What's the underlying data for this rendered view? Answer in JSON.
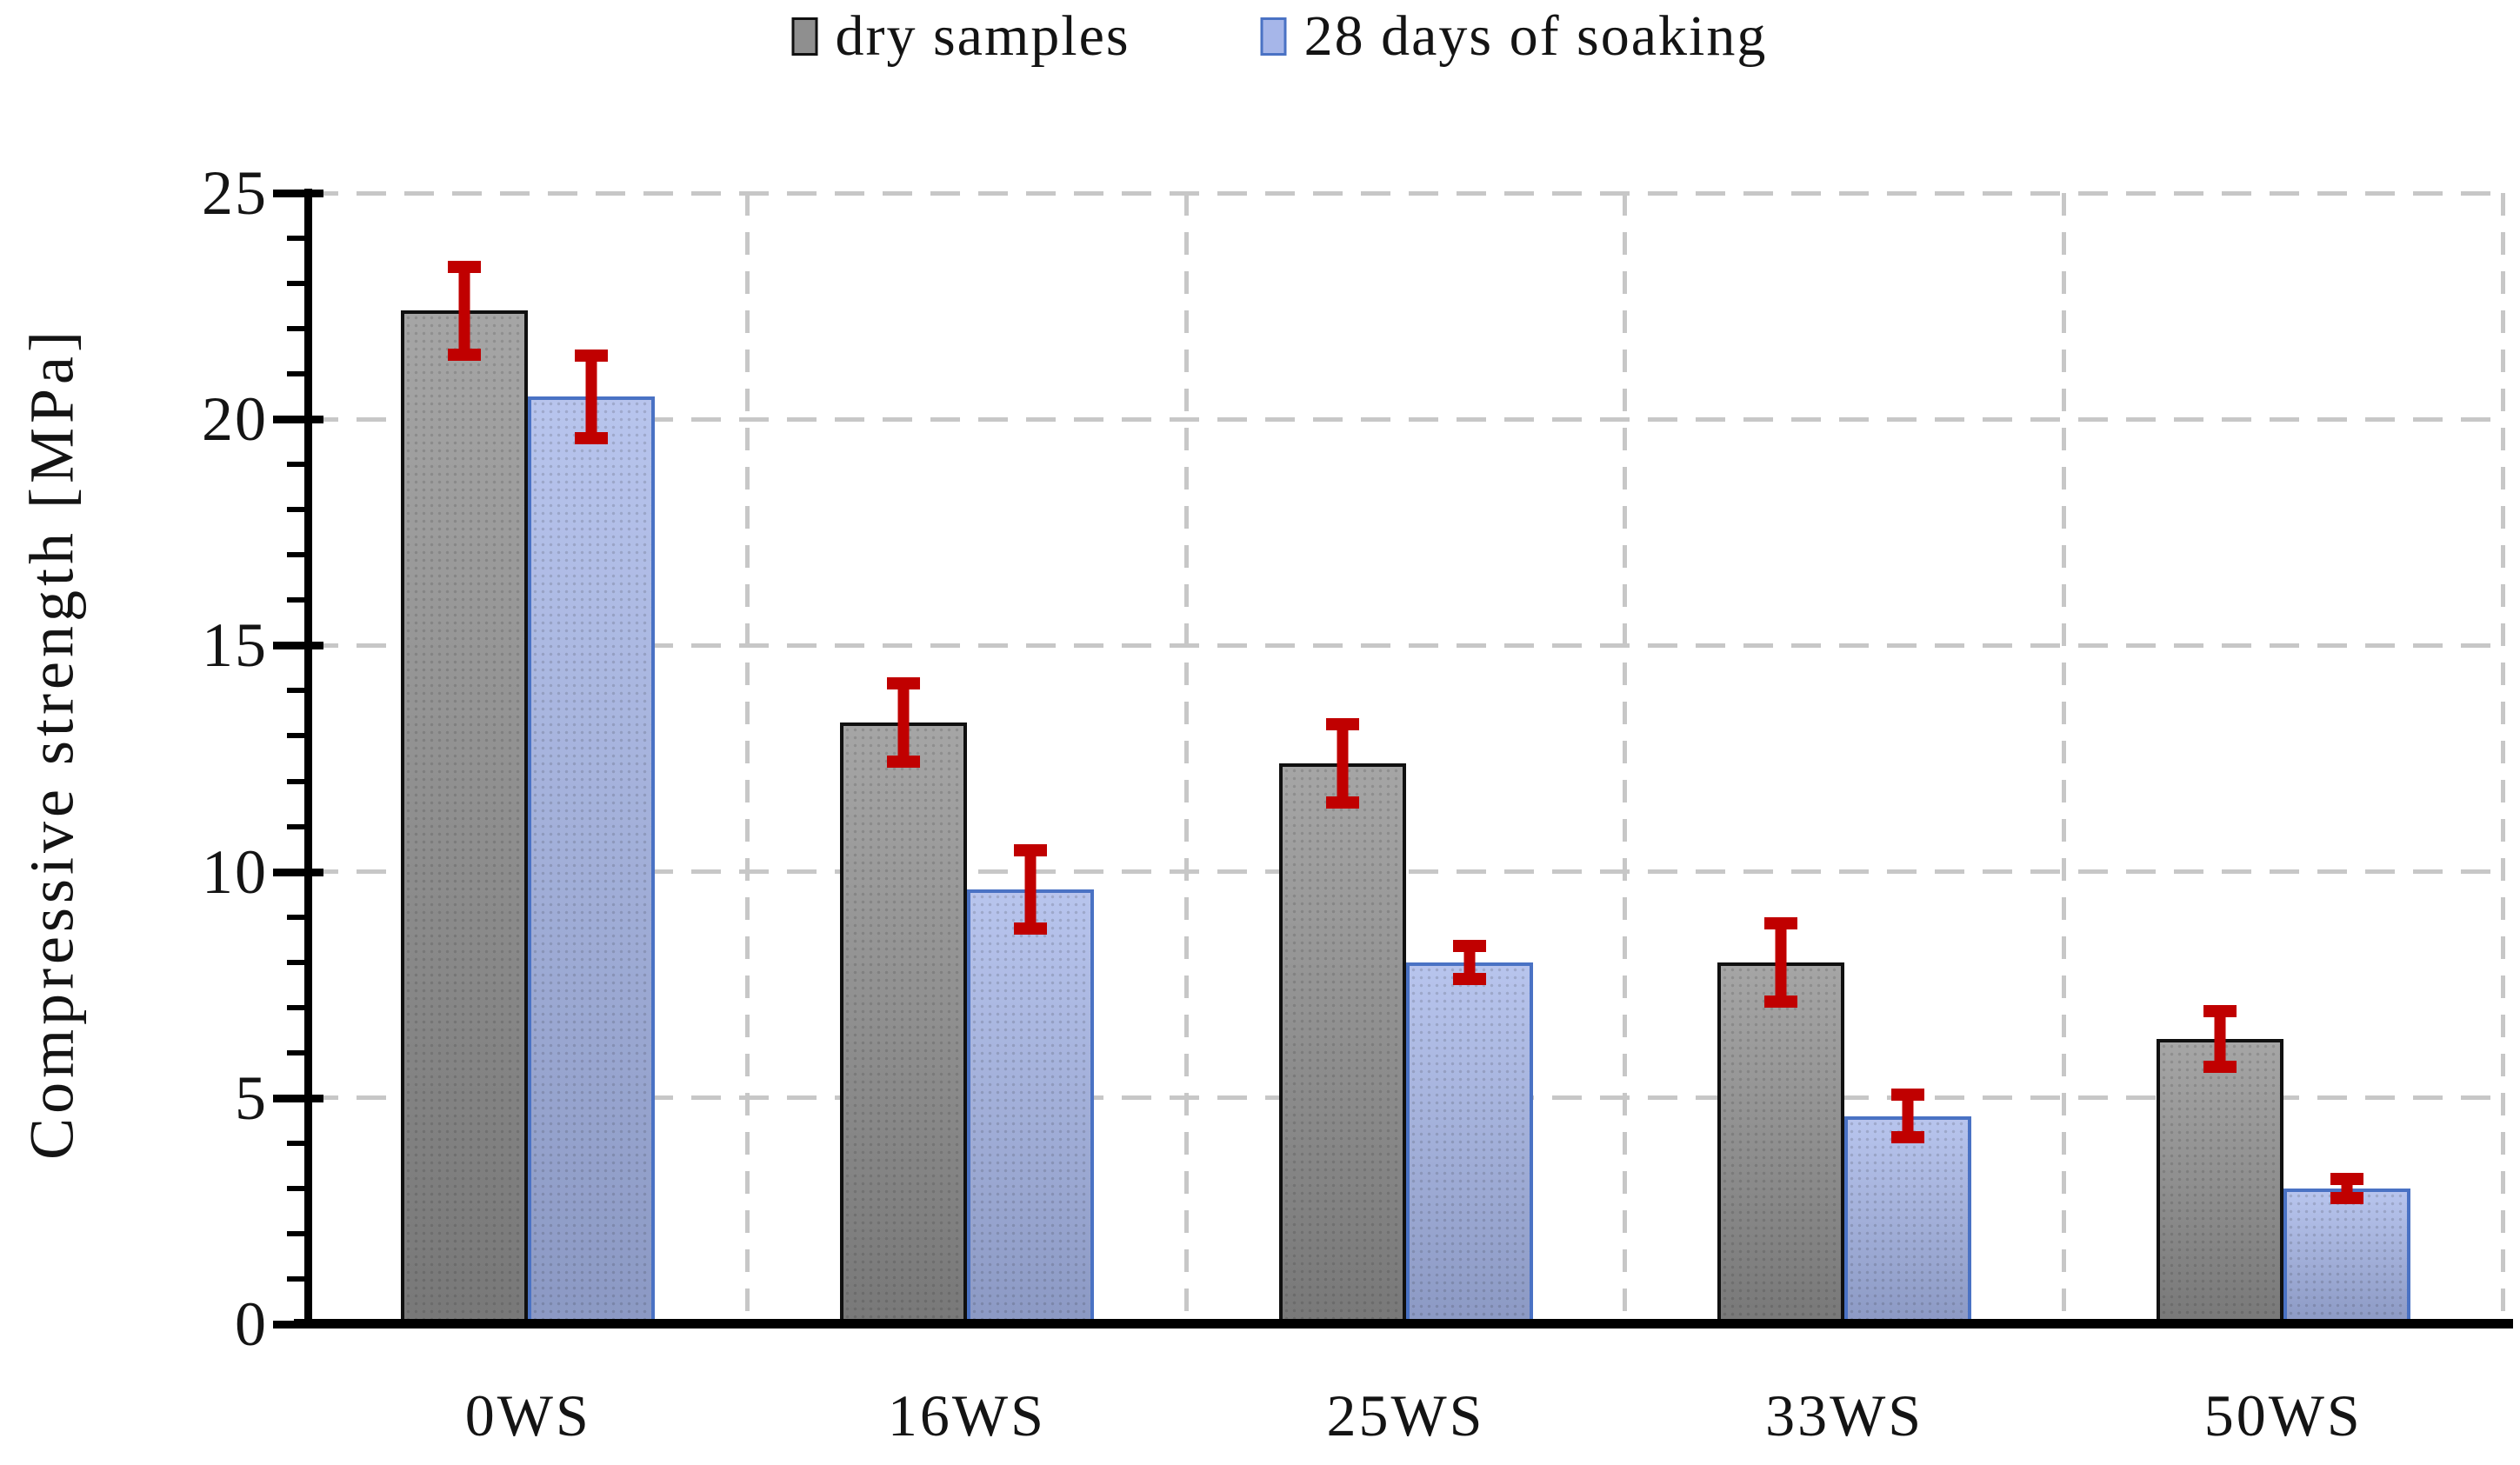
{
  "legend": {
    "position": "top",
    "items": [
      {
        "label": "dry samples"
      },
      {
        "label": "28 days of soaking"
      }
    ]
  },
  "axes": {
    "y_title": "Compressive strength [MPa]",
    "y_tick_labels": [
      "0",
      "5",
      "10",
      "15",
      "20",
      "25"
    ],
    "x_tick_labels": [
      "0WS",
      "16WS",
      "25WS",
      "33WS",
      "50WS"
    ]
  },
  "style": {
    "background": "#ffffff",
    "text_color": "#141414",
    "grid_color": "#c7c7c7",
    "axis_color": "#000000",
    "error_color": "#c00000",
    "dry_fill": "#8f8f8f",
    "dry_border": "#101010",
    "soaked_fill": "#a6b6e9",
    "soaked_border": "#4a72c4"
  },
  "chart_data": {
    "type": "bar",
    "title": "",
    "categories": [
      "0WS",
      "16WS",
      "25WS",
      "33WS",
      "50WS"
    ],
    "series": [
      {
        "name": "dry samples",
        "values": [
          22.4,
          13.3,
          12.4,
          8.0,
          6.3
        ],
        "errors": [
          1.1,
          1.0,
          1.0,
          1.0,
          0.75
        ],
        "fill": "#8f8f8f",
        "border": "#101010"
      },
      {
        "name": "28 days of soaking",
        "values": [
          20.5,
          9.6,
          8.0,
          4.6,
          3.0
        ],
        "errors": [
          1.05,
          1.0,
          0.5,
          0.6,
          0.35
        ],
        "fill": "#a6b6e9",
        "border": "#4a72c4"
      }
    ],
    "xlabel": "",
    "ylabel": "Compressive strength [MPa]",
    "ylim": [
      0,
      25
    ],
    "y_major_step": 5,
    "y_minor_step": 1,
    "grid": true,
    "legend_position": "top",
    "error_bars": true
  }
}
